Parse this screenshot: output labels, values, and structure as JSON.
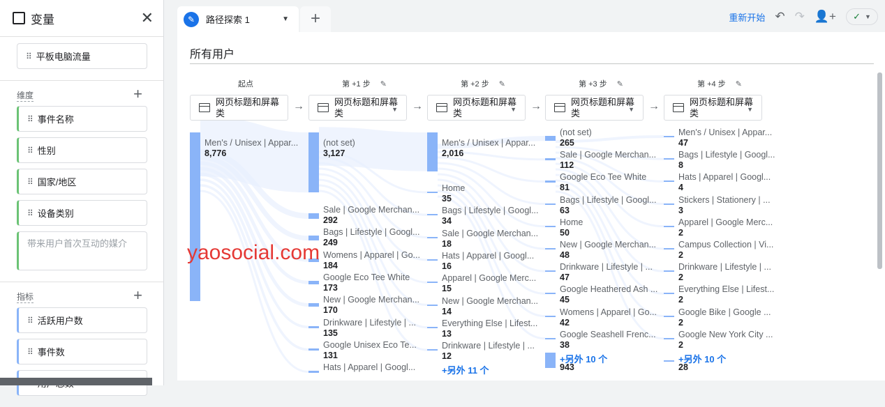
{
  "sidebar": {
    "title": "变量",
    "close": "✕",
    "segment": "平板电脑流量",
    "dimensions_title": "维度",
    "dimensions": [
      "事件名称",
      "性别",
      "国家/地区",
      "设备类别"
    ],
    "dimension_placeholder": "带来用户首次互动的媒介",
    "metrics_title": "指标",
    "metrics": [
      "活跃用户数",
      "事件数",
      "用户总数"
    ]
  },
  "tab": {
    "label": "路径探索 1",
    "add": "+"
  },
  "toolbar": {
    "restart": "重新开始",
    "undo": "↶",
    "redo": "↷",
    "share": "share-user-icon",
    "status": "✓"
  },
  "segment": "所有用户",
  "steps": [
    "起点",
    "第 +1 步",
    "第 +2 步",
    "第 +3 步",
    "第 +4 步"
  ],
  "dimension_label": "网页标题和屏幕类",
  "columns": [
    {
      "nodes": [
        {
          "label": "Men's / Unisex | Appar...",
          "value": "8,776",
          "n": 8776
        }
      ]
    },
    {
      "nodes": [
        {
          "label": "(not set)",
          "value": "3,127",
          "n": 3127
        },
        {
          "label": "Sale | Google Merchan...",
          "value": "292",
          "n": 292
        },
        {
          "label": "Bags | Lifestyle | Googl...",
          "value": "249",
          "n": 249
        },
        {
          "label": "Womens | Apparel | Go...",
          "value": "184",
          "n": 184
        },
        {
          "label": "Google Eco Tee White",
          "value": "173",
          "n": 173
        },
        {
          "label": "New | Google Merchan...",
          "value": "170",
          "n": 170
        },
        {
          "label": "Drinkware | Lifestyle | ...",
          "value": "135",
          "n": 135
        },
        {
          "label": "Google Unisex Eco Te...",
          "value": "131",
          "n": 131
        },
        {
          "label": "Hats | Apparel | Googl...",
          "value": "",
          "n": 100
        }
      ]
    },
    {
      "nodes": [
        {
          "label": "Men's / Unisex | Appar...",
          "value": "2,016",
          "n": 2016
        },
        {
          "label": "Home",
          "value": "35",
          "n": 35
        },
        {
          "label": "Bags | Lifestyle | Googl...",
          "value": "34",
          "n": 34
        },
        {
          "label": "Sale | Google Merchan...",
          "value": "18",
          "n": 18
        },
        {
          "label": "Hats | Apparel | Googl...",
          "value": "16",
          "n": 16
        },
        {
          "label": "Apparel | Google Merc...",
          "value": "15",
          "n": 15
        },
        {
          "label": "New | Google Merchan...",
          "value": "14",
          "n": 14
        },
        {
          "label": "Everything Else | Lifest...",
          "value": "13",
          "n": 13
        },
        {
          "label": "Drinkware | Lifestyle | ...",
          "value": "12",
          "n": 12
        }
      ],
      "more": "+另外 11 个"
    },
    {
      "nodes": [
        {
          "label": "(not set)",
          "value": "265",
          "n": 265
        },
        {
          "label": "Sale | Google Merchan...",
          "value": "112",
          "n": 112
        },
        {
          "label": "Google Eco Tee White",
          "value": "81",
          "n": 81
        },
        {
          "label": "Bags | Lifestyle | Googl...",
          "value": "63",
          "n": 63
        },
        {
          "label": "Home",
          "value": "50",
          "n": 50
        },
        {
          "label": "New | Google Merchan...",
          "value": "48",
          "n": 48
        },
        {
          "label": "Drinkware | Lifestyle | ...",
          "value": "47",
          "n": 47
        },
        {
          "label": "Google Heathered Ash ...",
          "value": "45",
          "n": 45
        },
        {
          "label": "Womens | Apparel | Go...",
          "value": "42",
          "n": 42
        },
        {
          "label": "Google Seashell Frenc...",
          "value": "38",
          "n": 38
        }
      ],
      "more": "+另外 10 个",
      "more_value": "943",
      "more_n": 943
    },
    {
      "nodes": [
        {
          "label": "Men's / Unisex | Appar...",
          "value": "47",
          "n": 47
        },
        {
          "label": "Bags | Lifestyle | Googl...",
          "value": "8",
          "n": 8
        },
        {
          "label": "Hats | Apparel | Googl...",
          "value": "4",
          "n": 4
        },
        {
          "label": "Stickers | Stationery | ...",
          "value": "3",
          "n": 3
        },
        {
          "label": "Apparel | Google Merc...",
          "value": "2",
          "n": 2
        },
        {
          "label": "Campus Collection | Vi...",
          "value": "2",
          "n": 2
        },
        {
          "label": "Drinkware | Lifestyle | ...",
          "value": "2",
          "n": 2
        },
        {
          "label": "Everything Else | Lifest...",
          "value": "2",
          "n": 2
        },
        {
          "label": "Google Bike | Google ...",
          "value": "2",
          "n": 2
        },
        {
          "label": "Google New York City ...",
          "value": "2",
          "n": 2
        }
      ],
      "more": "+另外 10 个",
      "more_value": "28",
      "more_n": 28
    }
  ],
  "watermark": "yaosocial.com",
  "colors": {
    "accent": "#1a73e8",
    "node": "#8ab4f8",
    "dimension": "#6bc375"
  }
}
